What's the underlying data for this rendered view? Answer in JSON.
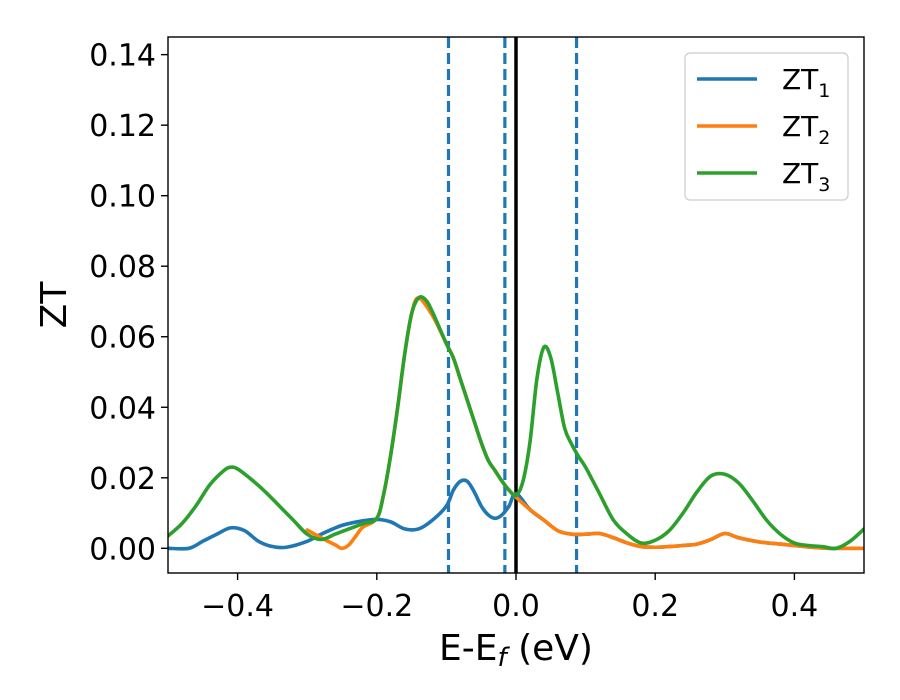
{
  "chart_data": {
    "type": "line",
    "title": "",
    "xlabel": {
      "main": "E-E",
      "sub": "f",
      "unit": " (eV)"
    },
    "ylabel": "ZT",
    "xlim": [
      -0.5,
      0.5
    ],
    "ylim": [
      -0.007,
      0.145
    ],
    "xticks": [
      -0.4,
      -0.2,
      0.0,
      0.2,
      0.4
    ],
    "xtick_labels": [
      "−0.4",
      "−0.2",
      "0.0",
      "0.2",
      "0.4"
    ],
    "yticks": [
      0.0,
      0.02,
      0.04,
      0.06,
      0.08,
      0.1,
      0.12,
      0.14
    ],
    "ytick_labels": [
      "0.00",
      "0.02",
      "0.04",
      "0.06",
      "0.08",
      "0.10",
      "0.12",
      "0.14"
    ],
    "grid": false,
    "legend_position": "top-right",
    "vlines": [
      {
        "x": -0.097,
        "style": "dashed",
        "color": "#1f77b4"
      },
      {
        "x": -0.016,
        "style": "dashed",
        "color": "#1f77b4"
      },
      {
        "x": 0.0,
        "style": "solid",
        "color": "#000000"
      },
      {
        "x": 0.087,
        "style": "dashed",
        "color": "#1f77b4"
      }
    ],
    "series": [
      {
        "name": "ZT",
        "sub": "1",
        "color": "#1f77b4",
        "x": [
          -0.5,
          -0.47,
          -0.45,
          -0.43,
          -0.41,
          -0.39,
          -0.37,
          -0.35,
          -0.33,
          -0.3,
          -0.28,
          -0.25,
          -0.22,
          -0.2,
          -0.18,
          -0.16,
          -0.14,
          -0.12,
          -0.1,
          -0.09,
          -0.08,
          -0.07,
          -0.06,
          -0.05,
          -0.04,
          -0.03,
          -0.02,
          -0.01,
          0.0,
          0.02,
          0.04,
          0.06,
          0.08,
          0.1,
          0.12,
          0.14,
          0.16,
          0.18,
          0.2,
          0.22,
          0.24,
          0.26,
          0.28,
          0.3,
          0.32,
          0.35,
          0.38,
          0.4,
          0.42,
          0.45,
          0.47,
          0.5
        ],
        "values": [
          0.0,
          0.0,
          0.002,
          0.004,
          0.0058,
          0.005,
          0.002,
          0.0005,
          0.0003,
          0.002,
          0.004,
          0.0065,
          0.0078,
          0.0082,
          0.0075,
          0.0055,
          0.0055,
          0.008,
          0.012,
          0.0165,
          0.019,
          0.019,
          0.016,
          0.012,
          0.0095,
          0.0085,
          0.0095,
          0.012,
          0.0155,
          0.011,
          0.008,
          0.005,
          0.004,
          0.004,
          0.0042,
          0.003,
          0.0015,
          0.0005,
          0.0003,
          0.0005,
          0.0008,
          0.0012,
          0.0025,
          0.0042,
          0.003,
          0.0018,
          0.0012,
          0.0008,
          0.0004,
          0.0,
          0.0,
          0.0
        ]
      },
      {
        "name": "ZT",
        "sub": "2",
        "color": "#ff7f0e",
        "x": [
          -0.3,
          -0.28,
          -0.26,
          -0.25,
          -0.24,
          -0.23,
          -0.22,
          -0.2,
          -0.19,
          -0.18,
          -0.17,
          -0.16,
          -0.15,
          -0.14,
          -0.12,
          -0.1,
          -0.09,
          -0.08,
          -0.07,
          -0.06,
          -0.05,
          -0.04,
          -0.03,
          -0.02,
          -0.01,
          0.0,
          0.02,
          0.04,
          0.06,
          0.08,
          0.1,
          0.12,
          0.14,
          0.16,
          0.18,
          0.2,
          0.22,
          0.24,
          0.26,
          0.28,
          0.3,
          0.32,
          0.35,
          0.38,
          0.4,
          0.42,
          0.45,
          0.47,
          0.5
        ],
        "values": [
          0.0052,
          0.003,
          0.001,
          0.0,
          0.001,
          0.0035,
          0.006,
          0.0085,
          0.0155,
          0.0265,
          0.04,
          0.055,
          0.0665,
          0.071,
          0.066,
          0.058,
          0.054,
          0.048,
          0.042,
          0.036,
          0.03,
          0.025,
          0.022,
          0.019,
          0.0165,
          0.0145,
          0.011,
          0.008,
          0.005,
          0.004,
          0.004,
          0.0042,
          0.003,
          0.0015,
          0.0005,
          0.0003,
          0.0005,
          0.0008,
          0.0012,
          0.0025,
          0.0042,
          0.003,
          0.0018,
          0.0012,
          0.0008,
          0.0004,
          0.0,
          0.0,
          0.0
        ]
      },
      {
        "name": "ZT",
        "sub": "3",
        "color": "#2ca02c",
        "x": [
          -0.5,
          -0.48,
          -0.46,
          -0.44,
          -0.42,
          -0.41,
          -0.4,
          -0.38,
          -0.36,
          -0.34,
          -0.32,
          -0.3,
          -0.28,
          -0.26,
          -0.24,
          -0.22,
          -0.2,
          -0.19,
          -0.18,
          -0.17,
          -0.16,
          -0.15,
          -0.14,
          -0.13,
          -0.12,
          -0.1,
          -0.09,
          -0.08,
          -0.07,
          -0.06,
          -0.05,
          -0.04,
          -0.03,
          -0.02,
          -0.01,
          0.0,
          0.01,
          0.02,
          0.03,
          0.04,
          0.05,
          0.06,
          0.07,
          0.08,
          0.09,
          0.1,
          0.12,
          0.14,
          0.16,
          0.18,
          0.2,
          0.22,
          0.24,
          0.26,
          0.28,
          0.3,
          0.32,
          0.34,
          0.36,
          0.38,
          0.4,
          0.42,
          0.44,
          0.46,
          0.48,
          0.5
        ],
        "values": [
          0.0035,
          0.007,
          0.012,
          0.018,
          0.022,
          0.023,
          0.0225,
          0.0195,
          0.016,
          0.012,
          0.008,
          0.004,
          0.0025,
          0.004,
          0.0055,
          0.007,
          0.0085,
          0.0155,
          0.0265,
          0.04,
          0.055,
          0.0665,
          0.071,
          0.0705,
          0.067,
          0.058,
          0.054,
          0.048,
          0.042,
          0.036,
          0.03,
          0.025,
          0.022,
          0.019,
          0.0165,
          0.015,
          0.019,
          0.03,
          0.048,
          0.057,
          0.054,
          0.044,
          0.034,
          0.0295,
          0.026,
          0.023,
          0.0155,
          0.008,
          0.004,
          0.0015,
          0.0023,
          0.005,
          0.01,
          0.016,
          0.0205,
          0.021,
          0.0185,
          0.0135,
          0.008,
          0.004,
          0.0015,
          0.0008,
          0.0005,
          0.0,
          0.002,
          0.0055
        ]
      }
    ]
  }
}
